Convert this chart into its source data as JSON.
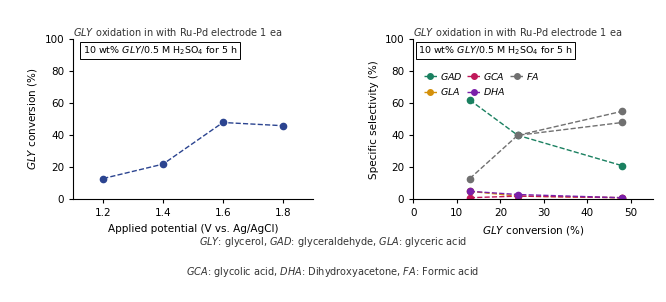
{
  "title": "GLY oxidation in with Ru-Pd electrode 1 ea",
  "left_plot": {
    "x": [
      1.2,
      1.4,
      1.6,
      1.8
    ],
    "y": [
      13,
      22,
      48,
      46
    ],
    "color": "#2b4490",
    "marker": "o",
    "xlabel": "Applied potential (V vs. Ag/AgCl)",
    "xlim": [
      1.1,
      1.9
    ],
    "ylim": [
      0,
      100
    ],
    "xticks": [
      1.2,
      1.4,
      1.6,
      1.8
    ],
    "yticks": [
      0,
      20,
      40,
      60,
      80,
      100
    ]
  },
  "right_plot": {
    "gly_conversion": [
      13,
      24,
      48
    ],
    "GAD": [
      62,
      40,
      21
    ],
    "GLA": [
      5,
      2,
      1
    ],
    "GCA": [
      1,
      2,
      1
    ],
    "DHA": [
      5,
      3,
      1
    ],
    "FA": [
      13,
      40,
      48
    ],
    "FA_top": [
      null,
      null,
      55
    ],
    "colors": {
      "GAD": "#1a8060",
      "GLA": "#d4900a",
      "GCA": "#c0185a",
      "DHA": "#7a20aa",
      "FA": "#707070"
    },
    "xlim": [
      0,
      55
    ],
    "ylim": [
      0,
      100
    ],
    "xticks": [
      0,
      10,
      20,
      30,
      40,
      50
    ],
    "yticks": [
      0,
      20,
      40,
      60,
      80,
      100
    ]
  },
  "footnote_line1": "GLY: glycerol, GAD: glyceraldehyde, GLA: glyceric acid",
  "footnote_line2": "GCA: glycolic acid, DHA: Dihydroxyacetone, FA: Formic acid"
}
